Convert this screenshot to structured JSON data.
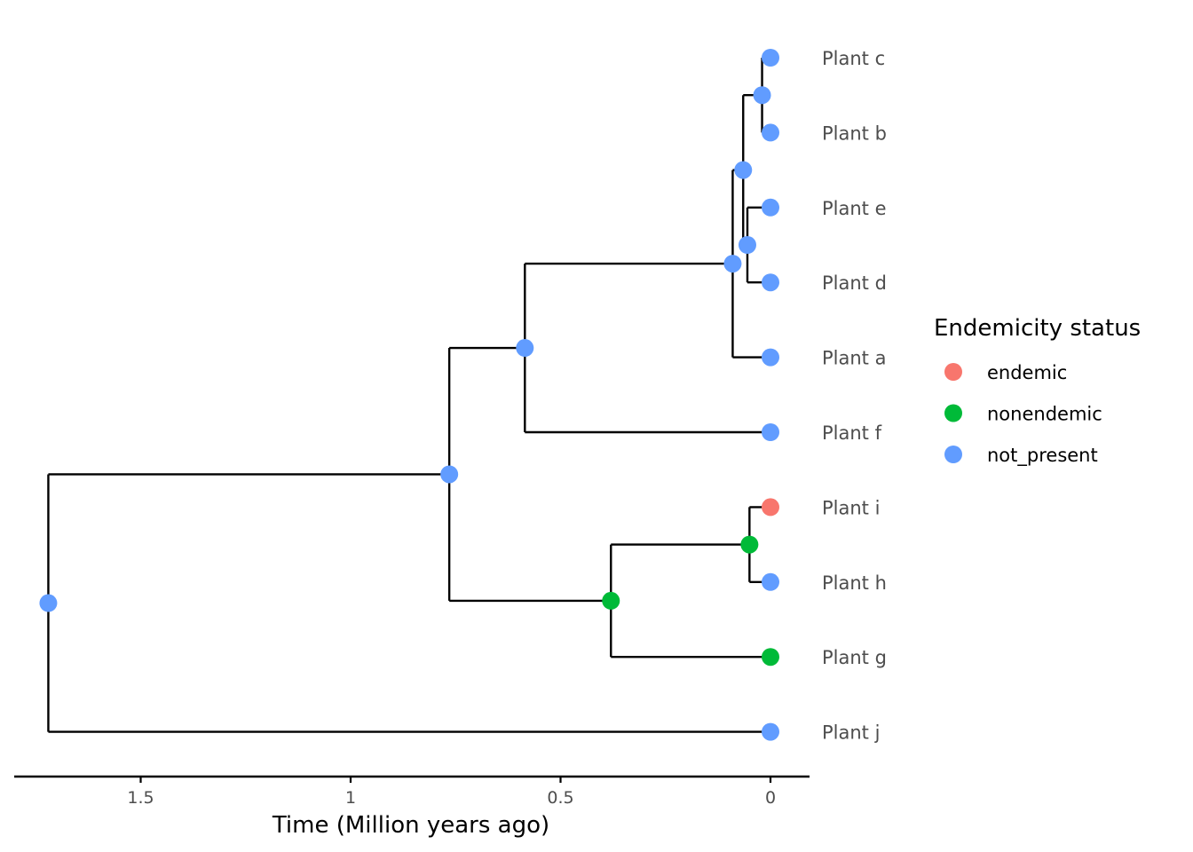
{
  "chart_data": {
    "type": "phylogenetic-tree",
    "xlabel": "Time (Million years ago)",
    "x_ticks": [
      1.5,
      1,
      0.5,
      0
    ],
    "x_tick_labels": [
      "1.5",
      "1",
      "0.5",
      "0"
    ],
    "x_range": [
      1.83,
      -0.09
    ],
    "legend": {
      "title": "Endemicity status",
      "position": "right",
      "items": [
        {
          "key": "endemic",
          "label": "endemic",
          "color": "#F8766D"
        },
        {
          "key": "nonendemic",
          "label": "nonendemic",
          "color": "#00BA38"
        },
        {
          "key": "not_present",
          "label": "not_present",
          "color": "#619CFF"
        }
      ]
    },
    "tips": [
      {
        "id": "c",
        "label": "Plant c",
        "status": "not_present"
      },
      {
        "id": "b",
        "label": "Plant b",
        "status": "not_present"
      },
      {
        "id": "e",
        "label": "Plant e",
        "status": "not_present"
      },
      {
        "id": "d",
        "label": "Plant d",
        "status": "not_present"
      },
      {
        "id": "a",
        "label": "Plant a",
        "status": "not_present"
      },
      {
        "id": "f",
        "label": "Plant f",
        "status": "not_present"
      },
      {
        "id": "i",
        "label": "Plant i",
        "status": "endemic"
      },
      {
        "id": "h",
        "label": "Plant h",
        "status": "not_present"
      },
      {
        "id": "g",
        "label": "Plant g",
        "status": "nonendemic"
      },
      {
        "id": "j",
        "label": "Plant j",
        "status": "not_present"
      }
    ],
    "nodes": [
      {
        "id": "n_cb",
        "age": 0.02,
        "children": [
          "c",
          "b"
        ],
        "status": "not_present"
      },
      {
        "id": "n_ed",
        "age": 0.055,
        "children": [
          "e",
          "d"
        ],
        "status": "not_present"
      },
      {
        "id": "n_cbed",
        "age": 0.065,
        "children": [
          "n_cb",
          "n_ed"
        ],
        "status": "not_present"
      },
      {
        "id": "n_cbeda",
        "age": 0.09,
        "children": [
          "n_cbed",
          "a"
        ],
        "status": "not_present"
      },
      {
        "id": "n_af",
        "age": 0.585,
        "children": [
          "n_cbeda",
          "f"
        ],
        "status": "not_present"
      },
      {
        "id": "n_ih",
        "age": 0.05,
        "children": [
          "i",
          "h"
        ],
        "status": "nonendemic"
      },
      {
        "id": "n_ihg",
        "age": 0.38,
        "children": [
          "n_ih",
          "g"
        ],
        "status": "nonendemic"
      },
      {
        "id": "n_big",
        "age": 0.765,
        "children": [
          "n_af",
          "n_ihg"
        ],
        "status": "not_present"
      },
      {
        "id": "root",
        "age": 1.72,
        "children": [
          "n_big",
          "j"
        ],
        "status": "not_present"
      }
    ]
  }
}
